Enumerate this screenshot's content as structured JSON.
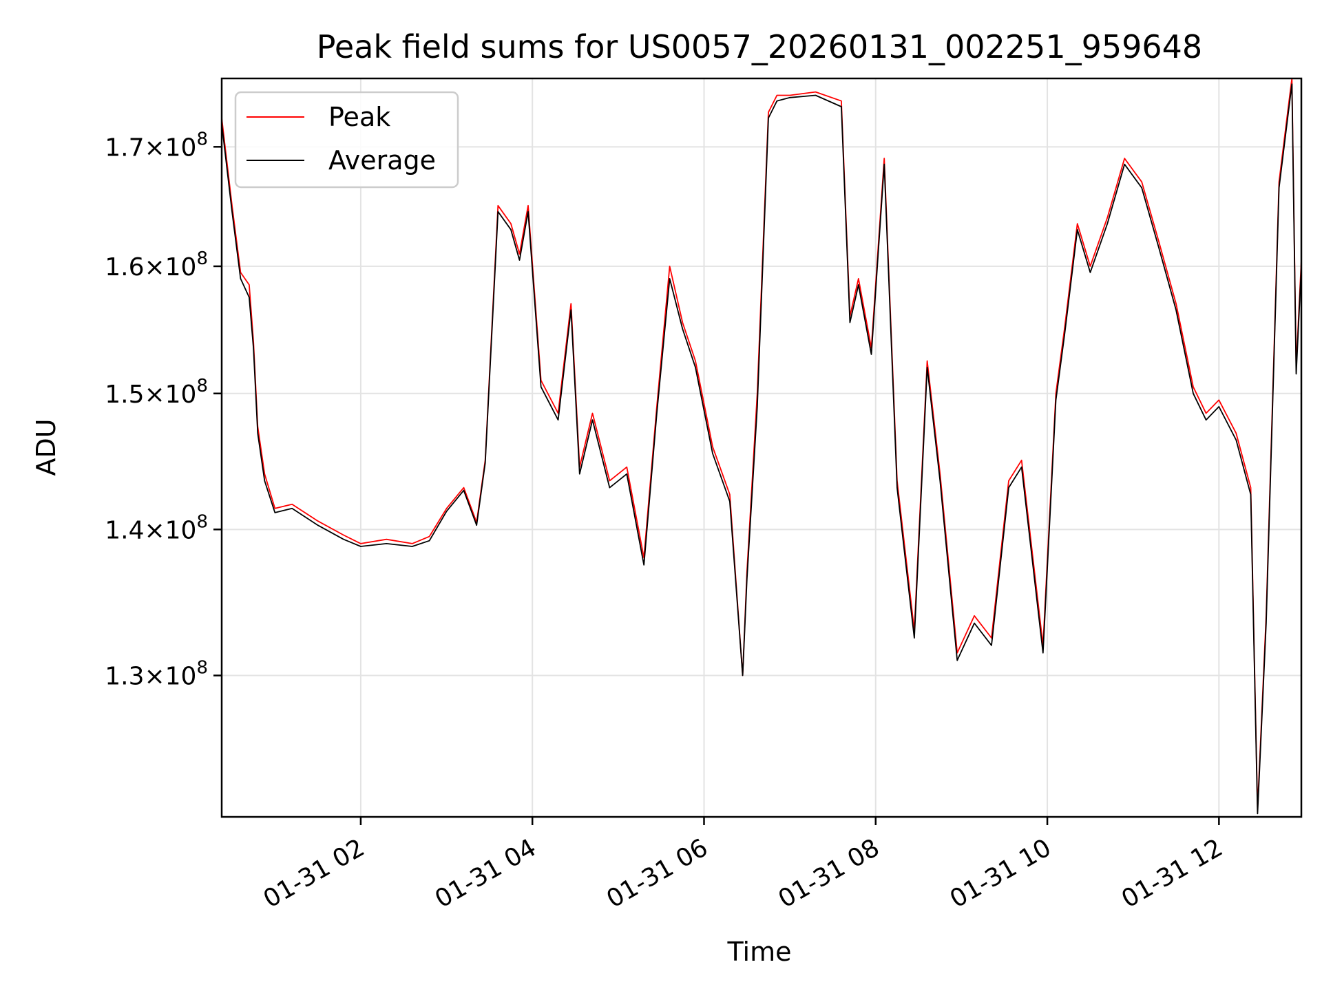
{
  "chart_data": {
    "type": "line",
    "title": "Peak field sums for US0057_20260131_002251_959648",
    "xlabel": "Time",
    "ylabel": "ADU",
    "y_scale": "log",
    "xlim_hours": [
      0.38,
      12.96
    ],
    "ylim": [
      121000000,
      176000000
    ],
    "grid": true,
    "legend_location": "upper-left",
    "x_ticks": [
      {
        "hour": 2,
        "label": "01-31 02"
      },
      {
        "hour": 4,
        "label": "01-31 04"
      },
      {
        "hour": 6,
        "label": "01-31 06"
      },
      {
        "hour": 8,
        "label": "01-31 08"
      },
      {
        "hour": 10,
        "label": "01-31 10"
      },
      {
        "hour": 12,
        "label": "01-31 12"
      }
    ],
    "y_ticks": [
      {
        "value": 130000000,
        "mantissa": "1.3",
        "base": "10",
        "exp": "8"
      },
      {
        "value": 140000000,
        "mantissa": "1.4",
        "base": "10",
        "exp": "8"
      },
      {
        "value": 150000000,
        "mantissa": "1.5",
        "base": "10",
        "exp": "8"
      },
      {
        "value": 160000000,
        "mantissa": "1.6",
        "base": "10",
        "exp": "8"
      },
      {
        "value": 170000000,
        "mantissa": "1.7",
        "base": "10",
        "exp": "8"
      }
    ],
    "x_hours": [
      0.38,
      0.5,
      0.6,
      0.7,
      0.75,
      0.8,
      0.88,
      1.0,
      1.2,
      1.5,
      1.8,
      2.0,
      2.3,
      2.6,
      2.8,
      3.0,
      3.2,
      3.35,
      3.45,
      3.6,
      3.75,
      3.85,
      3.95,
      4.1,
      4.3,
      4.45,
      4.55,
      4.7,
      4.9,
      5.1,
      5.3,
      5.45,
      5.6,
      5.75,
      5.9,
      6.1,
      6.3,
      6.45,
      6.5,
      6.62,
      6.75,
      6.85,
      7.0,
      7.3,
      7.6,
      7.7,
      7.8,
      7.95,
      8.1,
      8.25,
      8.45,
      8.6,
      8.75,
      8.95,
      9.15,
      9.35,
      9.55,
      9.7,
      9.95,
      10.1,
      10.2,
      10.35,
      10.5,
      10.7,
      10.9,
      11.1,
      11.3,
      11.5,
      11.7,
      11.85,
      12.0,
      12.2,
      12.37,
      12.45,
      12.55,
      12.7,
      12.8,
      12.85,
      12.9,
      12.96
    ],
    "series": [
      {
        "name": "Peak",
        "color": "#ff0000",
        "values": [
          172.5,
          165.0,
          159.5,
          158.5,
          154.0,
          147.5,
          144.0,
          141.5,
          141.8,
          140.6,
          139.6,
          139.0,
          139.3,
          139.0,
          139.5,
          141.5,
          143.0,
          140.5,
          145.0,
          165.0,
          163.5,
          161.0,
          165.0,
          151.0,
          148.5,
          157.0,
          144.5,
          148.5,
          143.5,
          144.5,
          138.0,
          149.0,
          160.0,
          155.5,
          152.5,
          146.0,
          142.5,
          130.0,
          137.0,
          150.0,
          173.0,
          174.5,
          174.5,
          174.8,
          174.0,
          156.0,
          159.0,
          153.5,
          169.0,
          143.5,
          133.0,
          152.5,
          144.0,
          131.5,
          134.0,
          132.5,
          143.5,
          145.0,
          132.0,
          150.0,
          155.0,
          163.5,
          160.0,
          164.0,
          169.0,
          167.0,
          162.0,
          157.0,
          150.5,
          148.5,
          149.5,
          147.0,
          143.0,
          121.5,
          134.0,
          167.0,
          173.0,
          176.0,
          152.0,
          160.5
        ]
      },
      {
        "name": "Average",
        "color": "#000000",
        "values": [
          172.0,
          164.5,
          159.0,
          157.5,
          153.5,
          147.0,
          143.5,
          141.2,
          141.5,
          140.3,
          139.3,
          138.8,
          139.0,
          138.8,
          139.2,
          141.3,
          142.8,
          140.3,
          144.8,
          164.5,
          163.0,
          160.5,
          164.5,
          150.5,
          148.0,
          156.5,
          144.0,
          148.0,
          143.0,
          144.0,
          137.5,
          148.5,
          159.0,
          155.0,
          152.0,
          145.5,
          142.0,
          130.0,
          136.5,
          149.0,
          172.5,
          174.0,
          174.3,
          174.5,
          173.5,
          155.5,
          158.5,
          153.0,
          168.5,
          143.0,
          132.5,
          152.0,
          143.5,
          131.0,
          133.5,
          132.0,
          143.0,
          144.5,
          131.5,
          149.5,
          154.5,
          163.0,
          159.5,
          163.5,
          168.5,
          166.5,
          161.5,
          156.5,
          150.0,
          148.0,
          149.0,
          146.5,
          142.5,
          121.2,
          133.5,
          166.5,
          172.5,
          175.5,
          151.5,
          160.0
        ]
      }
    ]
  }
}
